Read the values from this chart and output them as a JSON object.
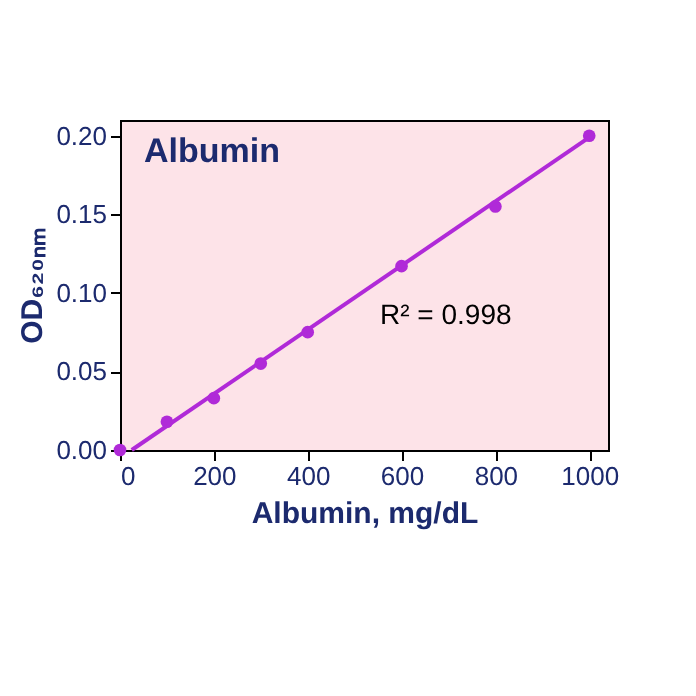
{
  "chart_data": {
    "type": "scatter",
    "title": "Albumin",
    "xlabel": "Albumin, mg/dL",
    "ylabel": "OD₆₂₀ₙₘ",
    "x": [
      0,
      100,
      200,
      300,
      400,
      600,
      800,
      1000
    ],
    "series": [
      {
        "color": "#b02ad8",
        "values": [
          0.0,
          0.018,
          0.033,
          0.055,
          0.075,
          0.117,
          0.155,
          0.2
        ],
        "marker": "circle"
      },
      {
        "type": "line",
        "color": "#b02ad8",
        "x": [
          25,
          1000
        ],
        "values": [
          0.0,
          0.199
        ],
        "line_style": "solid"
      }
    ],
    "annotations": [
      "R² = 0.998"
    ],
    "xlim": [
      0,
      1040
    ],
    "ylim": [
      0,
      0.21
    ],
    "xticks": [
      0,
      200,
      400,
      600,
      800,
      1000
    ],
    "yticks": [
      {
        "value": 0,
        "label": "0.00"
      },
      {
        "value": 0.05,
        "label": "0.05"
      },
      {
        "value": 0.1,
        "label": "0.10"
      },
      {
        "value": 0.15,
        "label": "0.15"
      },
      {
        "value": 0.2,
        "label": "0.20"
      }
    ],
    "grid": false
  }
}
